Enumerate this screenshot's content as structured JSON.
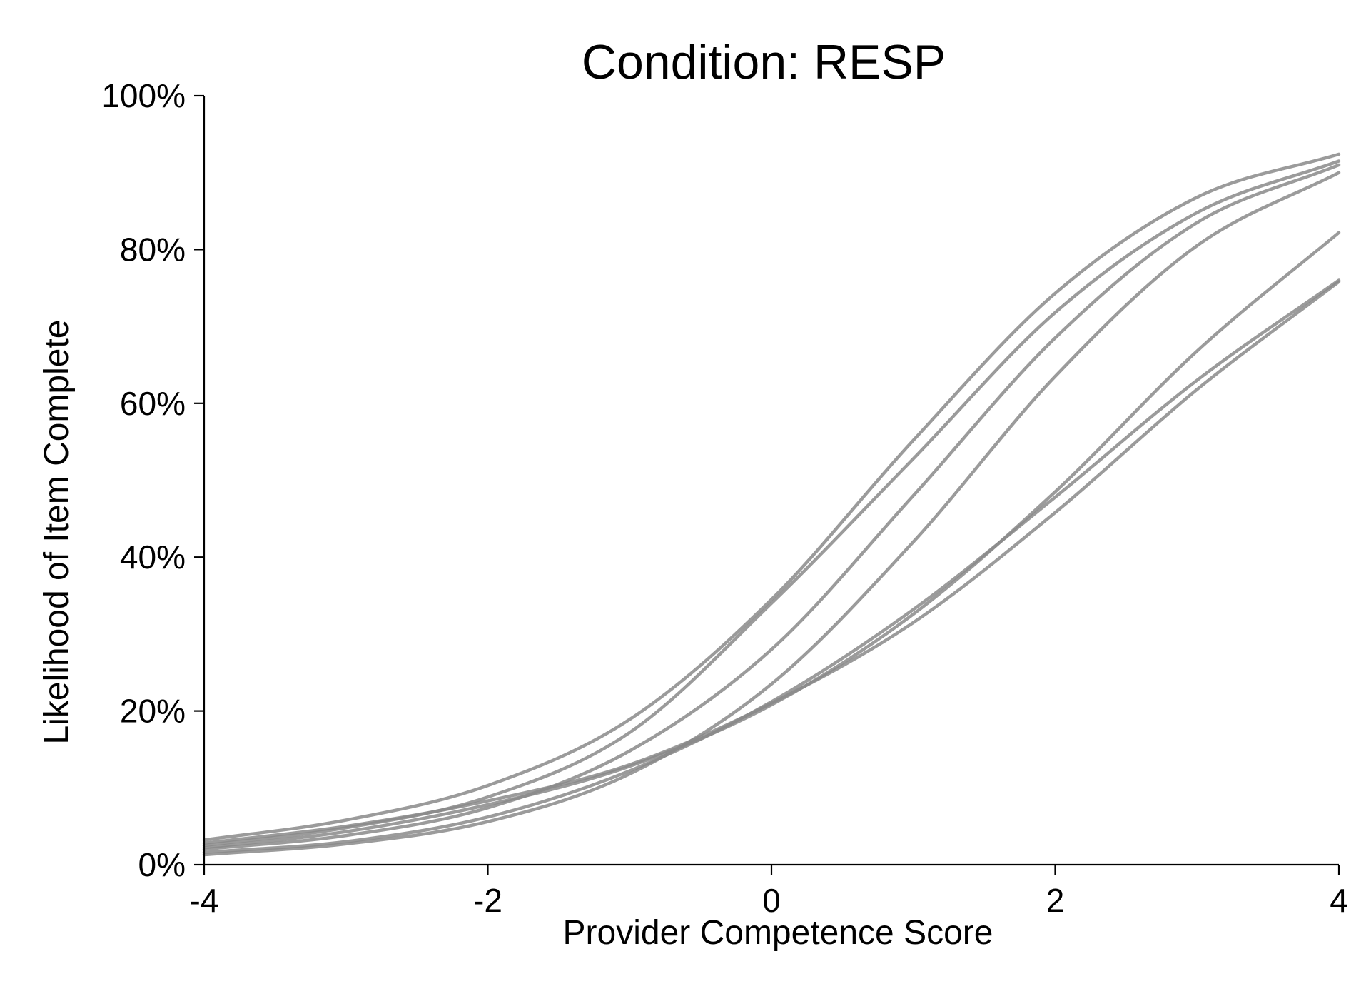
{
  "chart_data": {
    "type": "line",
    "title": "Condition: RESP",
    "xlabel": "Provider Competence Score",
    "ylabel": "Likelihood of Item Complete",
    "xlim": [
      -4,
      4
    ],
    "ylim": [
      0,
      100
    ],
    "x_ticks": [
      -4,
      -2,
      0,
      2,
      4
    ],
    "x_tick_labels": [
      "-4",
      "-2",
      "0",
      "2",
      "4"
    ],
    "y_ticks": [
      0,
      20,
      40,
      60,
      80,
      100
    ],
    "y_tick_labels": [
      "0%",
      "20%",
      "40%",
      "60%",
      "80%",
      "100%"
    ],
    "grid": false,
    "legend": "none",
    "line_color": "#8a8a8a",
    "x": [
      -4,
      -3,
      -2,
      -1,
      0,
      1,
      2,
      3,
      4
    ],
    "series": [
      {
        "values": [
          3.2,
          5.8,
          10.3,
          18.9,
          34.5,
          55.2,
          74.3,
          86.8,
          92.4
        ]
      },
      {
        "values": [
          2.5,
          4.8,
          8.8,
          17.2,
          34.0,
          52.8,
          71.8,
          84.8,
          91.5
        ]
      },
      {
        "values": [
          2.0,
          3.8,
          7.4,
          14.8,
          28.0,
          48.0,
          68.5,
          83.5,
          91.0
        ]
      },
      {
        "values": [
          1.3,
          2.7,
          5.6,
          11.8,
          23.5,
          42.0,
          63.5,
          80.5,
          90.0
        ]
      },
      {
        "values": [
          2.2,
          4.3,
          7.8,
          12.8,
          20.8,
          32.6,
          48.5,
          66.8,
          82.2
        ]
      },
      {
        "values": [
          2.8,
          5.0,
          8.3,
          13.0,
          21.0,
          31.5,
          45.8,
          61.8,
          75.8
        ]
      },
      {
        "values": [
          1.6,
          3.0,
          6.2,
          12.2,
          21.2,
          33.2,
          47.8,
          63.0,
          76.0
        ]
      }
    ]
  }
}
